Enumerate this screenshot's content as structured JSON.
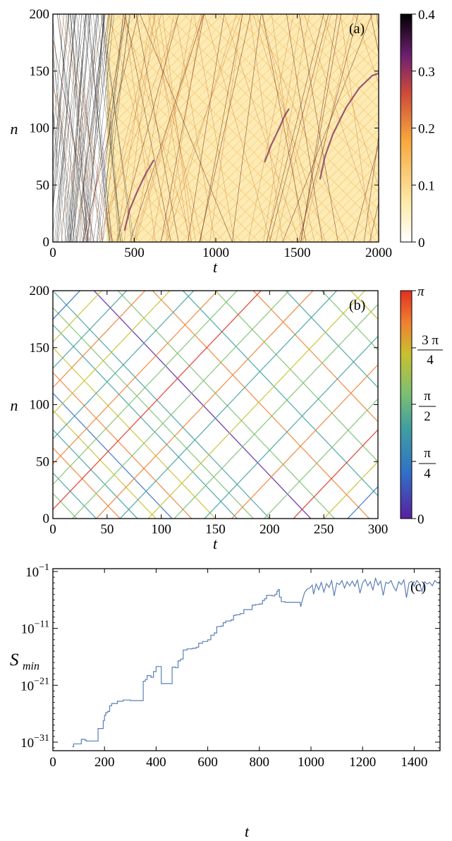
{
  "chart_data": [
    {
      "panel": "(a)",
      "type": "heatmap",
      "xlabel": "t",
      "ylabel": "n",
      "xlim": [
        0,
        2000
      ],
      "ylim": [
        0,
        200
      ],
      "xticks": [
        0,
        500,
        1000,
        1500,
        2000
      ],
      "yticks": [
        0,
        50,
        100,
        150,
        200
      ],
      "colorbar": {
        "range": [
          0,
          0.4
        ],
        "ticks": [
          "0",
          "0.1",
          "0.2",
          "0.3",
          "0.4"
        ],
        "colormap": "white-yellow-orange-purple-black"
      },
      "colors": [
        "#ffffff",
        "#fde7a0",
        "#f7a53a",
        "#c9483a",
        "#6a1f6e",
        "#000000"
      ],
      "features": {
        "thin_line_region_end_t": 330,
        "fill_region_start_t": 330,
        "dark_curves": [
          {
            "t": [
              440,
              470,
              520,
              570,
              620
            ],
            "n": [
              10,
              28,
              45,
              60,
              72
            ]
          },
          {
            "t": [
              1300,
              1340,
              1390,
              1420,
              1450
            ],
            "n": [
              70,
              85,
              100,
              110,
              117
            ]
          },
          {
            "t": [
              1640,
              1670,
              1720,
              1800,
              1880,
              1960,
              2000
            ],
            "n": [
              55,
              75,
              95,
              118,
              135,
              146,
              148
            ]
          }
        ]
      }
    },
    {
      "panel": "(b)",
      "type": "heatmap",
      "xlabel": "t",
      "ylabel": "n",
      "xlim": [
        0,
        300
      ],
      "ylim": [
        0,
        200
      ],
      "xticks": [
        0,
        50,
        100,
        150,
        200,
        250,
        300
      ],
      "yticks": [
        0,
        50,
        100,
        150,
        200
      ],
      "colorbar": {
        "range": [
          0,
          3.1416
        ],
        "ticks": [
          "0",
          "π/4",
          "π/2",
          "3 π/4",
          "π"
        ],
        "colormap": "purple-blue-green-yellow-orange-red"
      },
      "colors": [
        "#5a1fa0",
        "#3070c8",
        "#40a0a0",
        "#7cc070",
        "#c8c030",
        "#f08030",
        "#e03020"
      ],
      "lines": [
        {
          "t0": 0,
          "n0": 200,
          "t1": 200,
          "n1": 0,
          "phase": 0.85
        },
        {
          "t0": 0,
          "n0": 185,
          "t1": 185,
          "n1": 0,
          "phase": 1.6
        },
        {
          "t0": 0,
          "n0": 170,
          "t1": 170,
          "n1": 0,
          "phase": 1.3
        },
        {
          "t0": 0,
          "n0": 150,
          "t1": 150,
          "n1": 0,
          "phase": 2.3
        },
        {
          "t0": 0,
          "n0": 128,
          "t1": 128,
          "n1": 0,
          "phase": 2.7
        },
        {
          "t0": 0,
          "n0": 110,
          "t1": 110,
          "n1": 0,
          "phase": 0.35
        },
        {
          "t0": 0,
          "n0": 95,
          "t1": 95,
          "n1": 0,
          "phase": 1.9
        },
        {
          "t0": 0,
          "n0": 78,
          "t1": 78,
          "n1": 0,
          "phase": 1.2
        },
        {
          "t0": 0,
          "n0": 62,
          "t1": 62,
          "n1": 0,
          "phase": 2.8
        },
        {
          "t0": 0,
          "n0": 40,
          "t1": 40,
          "n1": 0,
          "phase": 0.9
        },
        {
          "t0": 0,
          "n0": 22,
          "t1": 22,
          "n1": 0,
          "phase": 1.7
        },
        {
          "t0": 38,
          "n0": 200,
          "t1": 238,
          "n1": 0,
          "phase": 0.25
        },
        {
          "t0": 60,
          "n0": 200,
          "t1": 260,
          "n1": 0,
          "phase": 1.5
        },
        {
          "t0": 92,
          "n0": 200,
          "t1": 292,
          "n1": 0,
          "phase": 2.4
        },
        {
          "t0": 120,
          "n0": 200,
          "t1": 300,
          "n1": 20,
          "phase": 1.1
        },
        {
          "t0": 150,
          "n0": 200,
          "t1": 300,
          "n1": 50,
          "phase": 1.8
        },
        {
          "t0": 185,
          "n0": 200,
          "t1": 300,
          "n1": 85,
          "phase": 2.6
        },
        {
          "t0": 215,
          "n0": 200,
          "t1": 300,
          "n1": 115,
          "phase": 0.8
        },
        {
          "t0": 248,
          "n0": 200,
          "t1": 300,
          "n1": 148,
          "phase": 1.4
        },
        {
          "t0": 275,
          "n0": 200,
          "t1": 300,
          "n1": 175,
          "phase": 2.2
        },
        {
          "t0": 0,
          "n0": 8,
          "t1": 192,
          "n1": 200,
          "phase": 2.9
        },
        {
          "t0": 0,
          "n0": 30,
          "t1": 170,
          "n1": 200,
          "phase": 1.6
        },
        {
          "t0": 0,
          "n0": 48,
          "t1": 152,
          "n1": 200,
          "phase": 2.5
        },
        {
          "t0": 0,
          "n0": 70,
          "t1": 130,
          "n1": 200,
          "phase": 1.0
        },
        {
          "t0": 0,
          "n0": 92,
          "t1": 108,
          "n1": 200,
          "phase": 2.0
        },
        {
          "t0": 0,
          "n0": 115,
          "t1": 85,
          "n1": 200,
          "phase": 2.75
        },
        {
          "t0": 0,
          "n0": 132,
          "t1": 68,
          "n1": 200,
          "phase": 1.3
        },
        {
          "t0": 0,
          "n0": 155,
          "t1": 45,
          "n1": 200,
          "phase": 1.85
        },
        {
          "t0": 0,
          "n0": 175,
          "t1": 25,
          "n1": 200,
          "phase": 0.6
        },
        {
          "t0": 18,
          "n0": 0,
          "t1": 218,
          "n1": 200,
          "phase": 1.5
        },
        {
          "t0": 40,
          "n0": 0,
          "t1": 240,
          "n1": 200,
          "phase": 2.85
        },
        {
          "t0": 62,
          "n0": 0,
          "t1": 262,
          "n1": 200,
          "phase": 1.2
        },
        {
          "t0": 88,
          "n0": 0,
          "t1": 288,
          "n1": 200,
          "phase": 2.3
        },
        {
          "t0": 112,
          "n0": 0,
          "t1": 300,
          "n1": 188,
          "phase": 1.7
        },
        {
          "t0": 140,
          "n0": 0,
          "t1": 300,
          "n1": 160,
          "phase": 0.9
        },
        {
          "t0": 165,
          "n0": 0,
          "t1": 300,
          "n1": 135,
          "phase": 2.6
        },
        {
          "t0": 195,
          "n0": 0,
          "t1": 300,
          "n1": 105,
          "phase": 1.4
        },
        {
          "t0": 222,
          "n0": 0,
          "t1": 300,
          "n1": 78,
          "phase": 2.9
        },
        {
          "t0": 250,
          "n0": 0,
          "t1": 300,
          "n1": 50,
          "phase": 1.9
        },
        {
          "t0": 272,
          "n0": 0,
          "t1": 300,
          "n1": 28,
          "phase": 0.45
        }
      ]
    },
    {
      "panel": "(c)",
      "type": "line",
      "xlabel": "t",
      "ylabel": "S",
      "ylabel_sub": "min",
      "xlim": [
        0,
        1500
      ],
      "ylim": [
        -32.5,
        -0.5
      ],
      "yscale": "log",
      "xticks": [
        0,
        200,
        400,
        600,
        800,
        1000,
        1200,
        1400
      ],
      "yticks": [
        {
          "exp": -1,
          "base": "10",
          "sup": "−1"
        },
        {
          "exp": -11,
          "base": "10",
          "sup": "−11"
        },
        {
          "exp": -21,
          "base": "10",
          "sup": "−21"
        },
        {
          "exp": -31,
          "base": "10",
          "sup": "−31"
        }
      ],
      "line_color": "#5b7fb8",
      "series": {
        "x": [
          75,
          80,
          100,
          110,
          125,
          130,
          170,
          175,
          188,
          195,
          200,
          205,
          212,
          220,
          228,
          238,
          250,
          260,
          272,
          300,
          340,
          350,
          358,
          365,
          372,
          380,
          390,
          400,
          420,
          440,
          450,
          462,
          475,
          485,
          495,
          505,
          520,
          540,
          555,
          565,
          580,
          600,
          612,
          625,
          635,
          650,
          660,
          670,
          690,
          700,
          710,
          725,
          740,
          760,
          772,
          785,
          800,
          812,
          820,
          828,
          840,
          850,
          860,
          868,
          872,
          878,
          885,
          900,
          920,
          940,
          950,
          958,
          960,
          968,
          975,
          985,
          995,
          1005,
          1010,
          1020,
          1030,
          1040,
          1050,
          1060,
          1070,
          1080,
          1090,
          1100,
          1110,
          1120,
          1130,
          1140,
          1150,
          1160,
          1170,
          1180,
          1190,
          1200,
          1210,
          1220,
          1230,
          1240,
          1250,
          1260,
          1270,
          1280,
          1290,
          1300,
          1310,
          1320,
          1330,
          1340,
          1350,
          1360,
          1370,
          1380,
          1390,
          1400,
          1410,
          1420,
          1430,
          1440,
          1450,
          1460,
          1470,
          1480,
          1490,
          1500
        ],
        "y": [
          -31.8,
          -31.3,
          -31.3,
          -30.5,
          -30.7,
          -30.8,
          -30.8,
          -28.6,
          -28.6,
          -27.2,
          -26.3,
          -25.8,
          -25.6,
          -24.6,
          -24.2,
          -24.2,
          -23.8,
          -23.8,
          -23.6,
          -23.7,
          -23.7,
          -20.3,
          -20.0,
          -19.3,
          -19.3,
          -19.6,
          -18.6,
          -17.7,
          -20.7,
          -20.7,
          -20.7,
          -17.8,
          -17.9,
          -16.7,
          -16.4,
          -14.8,
          -14.6,
          -14.5,
          -14.3,
          -13.6,
          -13.3,
          -13.0,
          -12.2,
          -11.8,
          -10.7,
          -10.6,
          -10.0,
          -9.7,
          -9.5,
          -8.7,
          -8.6,
          -8.4,
          -7.7,
          -7.7,
          -6.9,
          -6.8,
          -6.7,
          -6.1,
          -5.8,
          -5.2,
          -5.2,
          -5.3,
          -5.0,
          -4.5,
          -4.2,
          -5.5,
          -6.3,
          -6.4,
          -6.4,
          -6.4,
          -6.4,
          -6.4,
          -7.2,
          -5.8,
          -4.7,
          -4.1,
          -3.9,
          -3.4,
          -5.0,
          -3.2,
          -4.2,
          -2.9,
          -4.6,
          -3.1,
          -3.8,
          -2.6,
          -5.3,
          -3.0,
          -3.3,
          -2.6,
          -3.9,
          -2.8,
          -3.5,
          -2.7,
          -3.6,
          -2.5,
          -4.8,
          -3.0,
          -2.4,
          -3.5,
          -2.8,
          -4.3,
          -2.2,
          -3.4,
          -2.7,
          -5.2,
          -2.9,
          -3.1,
          -2.6,
          -3.7,
          -4.4,
          -2.8,
          -3.3,
          -2.5,
          -5.6,
          -3.0,
          -2.7,
          -3.6,
          -2.6,
          -3.1,
          -4.5,
          -2.8,
          -3.2,
          -2.9,
          -3.5,
          -2.6,
          -3.0,
          -2.8
        ]
      }
    }
  ],
  "panels": {
    "a": {
      "label": "(a)",
      "xlabel": "t",
      "ylabel": "n",
      "xticks": [
        "0",
        "500",
        "1000",
        "1500",
        "2000"
      ],
      "yticks": [
        "0",
        "50",
        "100",
        "150",
        "200"
      ],
      "cbticks": [
        "0",
        "0.1",
        "0.2",
        "0.3",
        "0.4"
      ]
    },
    "b": {
      "label": "(b)",
      "xlabel": "t",
      "ylabel": "n",
      "xticks": [
        "0",
        "50",
        "100",
        "150",
        "200",
        "250",
        "300"
      ],
      "yticks": [
        "0",
        "50",
        "100",
        "150",
        "200"
      ],
      "cbticks": {
        "zero": "0",
        "pi": "π",
        "pi_over_4_num": "π",
        "pi_over_4_den": "4",
        "pi_over_2_num": "π",
        "pi_over_2_den": "2",
        "three_pi_over_4_num": "3 π",
        "three_pi_over_4_den": "4"
      }
    },
    "c": {
      "label": "(c)",
      "xlabel": "t",
      "ylabel": "S",
      "ylabel_sub": "min",
      "xticks": [
        "0",
        "200",
        "400",
        "600",
        "800",
        "1000",
        "1200",
        "1400"
      ],
      "ytick_base": "10",
      "ytick_sups": [
        "−1",
        "−11",
        "−21",
        "−31"
      ]
    }
  }
}
